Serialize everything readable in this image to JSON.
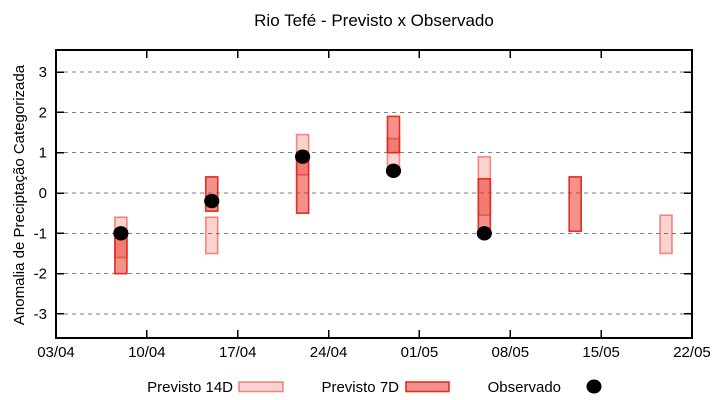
{
  "chart_data": {
    "type": "bar",
    "subtype": "forecast-range-boxes-with-observations",
    "title": "Rio Tefé - Previsto x Observado",
    "ylabel": "Anomalia de Preciptação Categorizada",
    "xlabel": "",
    "grid": true,
    "legend_position": "bottom",
    "ylim": [
      -3.6,
      3.55
    ],
    "y_ticks": [
      3,
      2,
      1,
      0,
      -1,
      -2,
      -3
    ],
    "x_axis": {
      "tick_labels": [
        "03/04",
        "10/04",
        "17/04",
        "24/04",
        "01/05",
        "08/05",
        "15/05",
        "22/05"
      ],
      "tick_days": [
        0,
        7,
        14,
        21,
        28,
        35,
        42,
        49
      ],
      "range_days": [
        0,
        49
      ]
    },
    "legend": [
      {
        "label": "Previsto 14D",
        "swatch": "box-light"
      },
      {
        "label": "Previsto 7D",
        "swatch": "box-dark"
      },
      {
        "label": "Observado",
        "swatch": "dot"
      }
    ],
    "bars": [
      {
        "date": "08/04",
        "day": 5,
        "previsto_14d": [
          -1.6,
          -0.6
        ],
        "previsto_7d": [
          -2.0,
          -1.0
        ],
        "observado": -1.0
      },
      {
        "date": "15/04",
        "day": 12,
        "previsto_14d": [
          -1.5,
          -0.6
        ],
        "previsto_7d": [
          -0.45,
          0.4
        ],
        "observado": -0.2
      },
      {
        "date": "22/04",
        "day": 19,
        "previsto_14d": [
          0.45,
          1.45
        ],
        "previsto_7d": [
          -0.5,
          0.9
        ],
        "observado": 0.9
      },
      {
        "date": "29/04",
        "day": 26,
        "previsto_14d": [
          0.5,
          1.35
        ],
        "previsto_7d": [
          1.0,
          1.9
        ],
        "observado": 0.55
      },
      {
        "date": "06/05",
        "day": 33,
        "previsto_14d": [
          -0.55,
          0.9
        ],
        "previsto_7d": [
          -1.0,
          0.35
        ],
        "observado": -1.0
      },
      {
        "date": "13/05",
        "day": 40,
        "previsto_14d": null,
        "previsto_7d": [
          -0.95,
          0.4
        ],
        "observado": null
      },
      {
        "date": "20/05",
        "day": 47,
        "previsto_14d": [
          -1.5,
          -0.55
        ],
        "previsto_7d": null,
        "observado": null
      }
    ],
    "colors": {
      "forecast_base": "#e52518",
      "p14_fill": "rgba(229,37,24,0.20)",
      "p14_stroke": "rgba(229,37,24,0.50)",
      "p7_fill": "rgba(229,37,24,0.50)",
      "p7_stroke": "rgba(229,37,24,0.95)",
      "observado": "#000000",
      "grid": "#7f7f7f",
      "axis": "#000000",
      "background": "#ffffff"
    }
  }
}
